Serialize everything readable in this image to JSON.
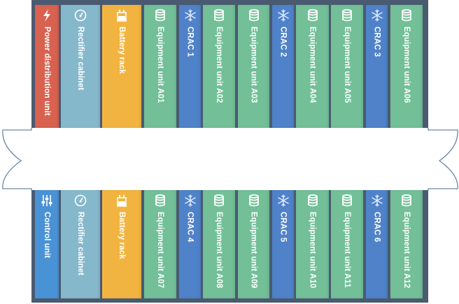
{
  "colors": {
    "frame": "#4a5a70",
    "power": "#d9614f",
    "rectifier": "#86b8cc",
    "battery": "#f2b441",
    "equipment": "#72bf98",
    "crac": "#4f82c9",
    "control": "#4a92d6"
  },
  "top_row": [
    {
      "label": "Power distribution unit",
      "type": "power",
      "icon": "lightning-bolt-icon"
    },
    {
      "label": "Rectifier cabinet",
      "type": "rectifier",
      "icon": "gauge-icon"
    },
    {
      "label": "Battery rack",
      "type": "battery",
      "icon": "battery-icon"
    },
    {
      "label": "Equipment unit A01",
      "type": "equipment",
      "icon": "database-icon"
    },
    {
      "label": "CRAC 1",
      "type": "crac",
      "icon": "snowflake-icon"
    },
    {
      "label": "Equipment unit A02",
      "type": "equipment",
      "icon": "database-icon"
    },
    {
      "label": "Equipment unit A03",
      "type": "equipment",
      "icon": "database-icon"
    },
    {
      "label": "CRAC 2",
      "type": "crac",
      "icon": "snowflake-icon"
    },
    {
      "label": "Equipment unit A04",
      "type": "equipment",
      "icon": "database-icon"
    },
    {
      "label": "Equipment unit A05",
      "type": "equipment",
      "icon": "database-icon"
    },
    {
      "label": "CRAC 3",
      "type": "crac",
      "icon": "snowflake-icon"
    },
    {
      "label": "Equipment unit A06",
      "type": "equipment",
      "icon": "database-icon"
    }
  ],
  "bottom_row": [
    {
      "label": "Control unit",
      "type": "control",
      "icon": "sliders-icon"
    },
    {
      "label": "Rectifier cabinet",
      "type": "rectifier",
      "icon": "gauge-icon"
    },
    {
      "label": "Battery rack",
      "type": "battery",
      "icon": "battery-icon"
    },
    {
      "label": "Equipment unit A07",
      "type": "equipment",
      "icon": "database-icon"
    },
    {
      "label": "CRAC 4",
      "type": "crac",
      "icon": "snowflake-icon"
    },
    {
      "label": "Equipment unit A08",
      "type": "equipment",
      "icon": "database-icon"
    },
    {
      "label": "Equipment unit A09",
      "type": "equipment",
      "icon": "database-icon"
    },
    {
      "label": "CRAC 5",
      "type": "crac",
      "icon": "snowflake-icon"
    },
    {
      "label": "Equipment unit A10",
      "type": "equipment",
      "icon": "database-icon"
    },
    {
      "label": "Equipment unit A11",
      "type": "equipment",
      "icon": "database-icon"
    },
    {
      "label": "CRAC 6",
      "type": "crac",
      "icon": "snowflake-icon"
    },
    {
      "label": "Equipment unit A12",
      "type": "equipment",
      "icon": "database-icon"
    }
  ]
}
